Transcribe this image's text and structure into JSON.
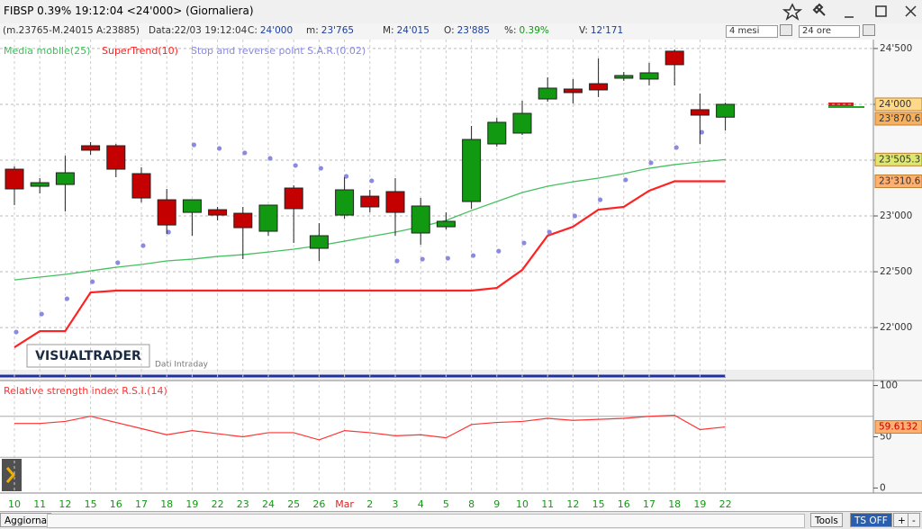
{
  "title_bar": {
    "title": "FIBSP 0.39% 19:12:04 <24'000> (Giornaliera)"
  },
  "info_bar": {
    "summary": "(m.23765-M.24015 A:23885)",
    "date": "Data:22/03 19:12:04",
    "fields": [
      {
        "label": "C:",
        "value": "24'000"
      },
      {
        "label": "m:",
        "value": "23'765"
      },
      {
        "label": "M:",
        "value": "24'015"
      },
      {
        "label": "O:",
        "value": "23'885"
      },
      {
        "label": "%:",
        "value": "0.39%"
      },
      {
        "label": "V:",
        "value": "12'171"
      }
    ],
    "period": "4 mesi",
    "session": "24 ore"
  },
  "chart_data": [
    {
      "type": "candlestick",
      "categories": [
        "10",
        "11",
        "12",
        "15",
        "16",
        "17",
        "18",
        "19",
        "22",
        "23",
        "24",
        "25",
        "26",
        "Mar",
        "2",
        "3",
        "4",
        "5",
        "8",
        "9",
        "10",
        "11",
        "12",
        "15",
        "16",
        "17",
        "18",
        "19",
        "22"
      ],
      "open": [
        23419,
        23266,
        23282,
        23629,
        23629,
        23379,
        23145,
        23032,
        23056,
        23024,
        22863,
        23250,
        22710,
        23008,
        23177,
        23218,
        22847,
        22903,
        23129,
        23645,
        23742,
        24048,
        24137,
        24185,
        24234,
        24226,
        24476,
        23952,
        23885
      ],
      "high": [
        23444,
        23339,
        23540,
        23661,
        23645,
        23435,
        23242,
        23145,
        23081,
        23081,
        23097,
        23274,
        22935,
        23347,
        23234,
        23339,
        23161,
        23032,
        23806,
        23879,
        24032,
        24242,
        24226,
        24411,
        24290,
        24371,
        24492,
        24097,
        24015
      ],
      "low": [
        23097,
        23202,
        23040,
        23548,
        23347,
        23121,
        22839,
        22823,
        22960,
        22613,
        22823,
        22758,
        22597,
        22976,
        23032,
        22823,
        22742,
        22879,
        23065,
        23621,
        23726,
        24024,
        24008,
        24065,
        24210,
        24169,
        24169,
        23645,
        23765
      ],
      "close": [
        23242,
        23298,
        23387,
        23589,
        23419,
        23161,
        22919,
        23145,
        23008,
        22895,
        23097,
        23065,
        22823,
        23234,
        23081,
        23032,
        23089,
        22952,
        23685,
        23839,
        23919,
        24145,
        24105,
        24129,
        24258,
        24282,
        24355,
        23903,
        24000
      ],
      "up_color": "#119911",
      "down_color": "#c40000",
      "series": [
        {
          "name": "Media mobile(25)",
          "color": "#44c060",
          "style": "line",
          "values": [
            22427,
            22452,
            22476,
            22508,
            22540,
            22565,
            22597,
            22613,
            22637,
            22653,
            22677,
            22702,
            22734,
            22774,
            22815,
            22855,
            22903,
            22960,
            23048,
            23129,
            23210,
            23266,
            23306,
            23339,
            23379,
            23427,
            23460,
            23484,
            23505.3
          ]
        },
        {
          "name": "SuperTrend(10)",
          "color": "#ff2222",
          "style": "line",
          "values": [
            21823,
            21968,
            21968,
            22315,
            22331,
            22331,
            22331,
            22331,
            22331,
            22331,
            22331,
            22331,
            22331,
            22331,
            22331,
            22331,
            22331,
            22331,
            22331,
            22355,
            22516,
            22823,
            22903,
            23056,
            23081,
            23226,
            23310.6,
            23310.6,
            23310.6
          ]
        },
        {
          "name": "Stop and reverse point S.A.R.(0.02)",
          "color": "#8a8ae0",
          "style": "dots",
          "values": [
            21960,
            22121,
            22258,
            22411,
            22581,
            22734,
            22855,
            23637,
            23605,
            23565,
            23516,
            23452,
            23427,
            23355,
            23315,
            22597,
            22613,
            22621,
            22645,
            22685,
            22758,
            22855,
            23000,
            23145,
            23323,
            23476,
            23613,
            23750,
            null
          ]
        }
      ],
      "ylim": [
        21630,
        24580
      ],
      "yticks": [
        {
          "value": 22000,
          "label": "22'000"
        },
        {
          "value": 22500,
          "label": "22'500"
        },
        {
          "value": 23000,
          "label": "23'000"
        },
        {
          "value": 23500,
          "label": "23'500"
        },
        {
          "value": 24000,
          "label": "24'000"
        },
        {
          "value": 24500,
          "label": "24'500"
        }
      ],
      "price_tags": [
        {
          "value": 24000,
          "label": "24'000",
          "color": "#ffd98a"
        },
        {
          "value": 23870.6,
          "label": "23'870.6",
          "color": "#f5b060"
        },
        {
          "value": 23505.3,
          "label": "23'505.3",
          "color": "#dde870"
        },
        {
          "value": 23310.6,
          "label": "23'310.6",
          "color": "#ffb070"
        }
      ],
      "grid": true,
      "watermark": "VISUALTRADER",
      "note": "Dati Intraday"
    },
    {
      "type": "line",
      "title": "Relative strength index R.S.I.(14)",
      "color": "#ff3333",
      "values": [
        63,
        63,
        65,
        70,
        64,
        58,
        52,
        56,
        53,
        50,
        54,
        54,
        47,
        56,
        54,
        51,
        52,
        49,
        62,
        64,
        65,
        68,
        66,
        67,
        68,
        70,
        71,
        57,
        59.6132
      ],
      "value_label": "59.6132",
      "ylim": [
        -4,
        104
      ],
      "yticks": [
        0,
        50,
        100
      ],
      "reference_lines": [
        30,
        70
      ]
    }
  ],
  "footer": {
    "refresh": "Aggiorna",
    "tools": "Tools",
    "ts": "TS OFF",
    "plus": "+",
    "minus": "-"
  }
}
